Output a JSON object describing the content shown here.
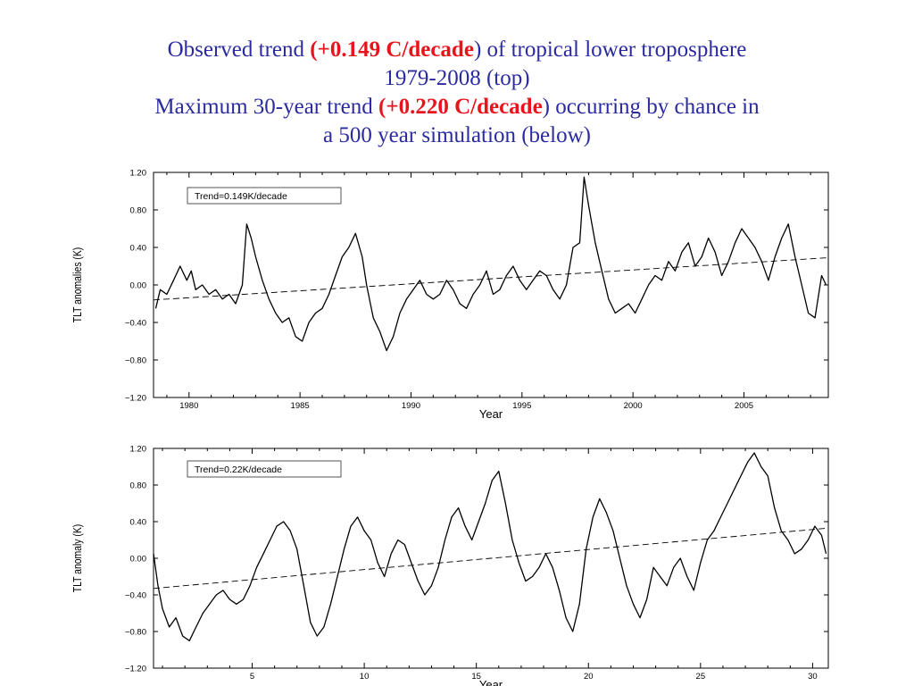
{
  "title": {
    "line1_pre": "Observed trend ",
    "line1_hl": "(+0.149 C/decade",
    "line1_post": ") of tropical lower troposphere",
    "line2": "1979-2008 (top)",
    "line3_pre": "Maximum 30-year trend ",
    "line3_hl": "(+0.220 C/decade",
    "line3_post": ") occurring by chance in",
    "line4": "a 500 year simulation (below)"
  },
  "colors": {
    "title": "#2b2ba0",
    "highlight": "#e8141c",
    "series": "#000000"
  },
  "chart_data": [
    {
      "type": "line",
      "xlabel": "Year",
      "ylabel": "TLT anomalies (K)",
      "legend": "Trend=0.149K/decade",
      "legend_position": "top-left",
      "xlim": [
        1978.4,
        2008.8
      ],
      "ylim": [
        -1.2,
        1.2
      ],
      "xticks": [
        1980,
        1985,
        1990,
        1995,
        2000,
        2005
      ],
      "yticks": [
        "1.20",
        "0.80",
        "0.40",
        "0.00",
        "−0.40",
        "−0.80",
        "−1.20"
      ],
      "grid": false,
      "series": [
        {
          "style": "solid",
          "x": [
            1978.5,
            1978.7,
            1979.0,
            1979.3,
            1979.6,
            1979.9,
            1980.1,
            1980.3,
            1980.6,
            1980.9,
            1981.2,
            1981.5,
            1981.8,
            1982.1,
            1982.4,
            1982.6,
            1982.8,
            1983.0,
            1983.3,
            1983.6,
            1983.9,
            1984.2,
            1984.5,
            1984.8,
            1985.1,
            1985.4,
            1985.7,
            1986.0,
            1986.3,
            1986.6,
            1986.9,
            1987.2,
            1987.5,
            1987.8,
            1988.0,
            1988.3,
            1988.6,
            1988.9,
            1989.2,
            1989.5,
            1989.8,
            1990.1,
            1990.4,
            1990.7,
            1991.0,
            1991.3,
            1991.6,
            1991.9,
            1992.2,
            1992.5,
            1992.8,
            1993.1,
            1993.4,
            1993.7,
            1994.0,
            1994.3,
            1994.6,
            1994.9,
            1995.2,
            1995.5,
            1995.8,
            1996.1,
            1996.4,
            1996.7,
            1997.0,
            1997.3,
            1997.6,
            1997.8,
            1998.0,
            1998.3,
            1998.6,
            1998.9,
            1999.2,
            1999.5,
            1999.8,
            2000.1,
            2000.4,
            2000.7,
            2001.0,
            2001.3,
            2001.6,
            2001.9,
            2002.2,
            2002.5,
            2002.8,
            2003.1,
            2003.4,
            2003.7,
            2004.0,
            2004.3,
            2004.6,
            2004.9,
            2005.2,
            2005.5,
            2005.8,
            2006.1,
            2006.4,
            2006.7,
            2007.0,
            2007.3,
            2007.6,
            2007.9,
            2008.2,
            2008.5,
            2008.7
          ],
          "y": [
            -0.25,
            -0.05,
            -0.1,
            0.05,
            0.2,
            0.05,
            0.15,
            -0.05,
            0.0,
            -0.1,
            -0.05,
            -0.15,
            -0.1,
            -0.2,
            0.0,
            0.65,
            0.5,
            0.3,
            0.05,
            -0.15,
            -0.3,
            -0.4,
            -0.35,
            -0.55,
            -0.6,
            -0.4,
            -0.3,
            -0.25,
            -0.1,
            0.1,
            0.3,
            0.4,
            0.55,
            0.3,
            0.0,
            -0.35,
            -0.5,
            -0.7,
            -0.55,
            -0.3,
            -0.15,
            -0.05,
            0.05,
            -0.1,
            -0.15,
            -0.1,
            0.05,
            -0.05,
            -0.2,
            -0.25,
            -0.1,
            0.0,
            0.15,
            -0.1,
            -0.05,
            0.1,
            0.2,
            0.05,
            -0.05,
            0.05,
            0.15,
            0.1,
            -0.05,
            -0.15,
            0.0,
            0.4,
            0.45,
            1.15,
            0.85,
            0.45,
            0.15,
            -0.15,
            -0.3,
            -0.25,
            -0.2,
            -0.3,
            -0.15,
            0.0,
            0.1,
            0.05,
            0.25,
            0.15,
            0.35,
            0.45,
            0.2,
            0.3,
            0.5,
            0.35,
            0.1,
            0.25,
            0.45,
            0.6,
            0.5,
            0.4,
            0.25,
            0.05,
            0.3,
            0.5,
            0.65,
            0.3,
            0.0,
            -0.3,
            -0.35,
            0.1,
            0.0
          ]
        },
        {
          "style": "dashed",
          "x": [
            1978.4,
            2008.8
          ],
          "y": [
            -0.16,
            0.29
          ]
        }
      ]
    },
    {
      "type": "line",
      "xlabel": "Year",
      "ylabel": "TLT anomaly (K)",
      "legend": "Trend=0.22K/decade",
      "legend_position": "top-left",
      "xlim": [
        0.6,
        30.7
      ],
      "ylim": [
        -1.2,
        1.2
      ],
      "xticks": [
        5,
        10,
        15,
        20,
        25,
        30
      ],
      "yticks": [
        "1.20",
        "0.80",
        "0.40",
        "0.00",
        "−0.40",
        "−0.80",
        "−1.20"
      ],
      "grid": false,
      "series": [
        {
          "style": "solid",
          "x": [
            0.6,
            0.8,
            1.0,
            1.3,
            1.6,
            1.9,
            2.2,
            2.5,
            2.8,
            3.1,
            3.4,
            3.7,
            4.0,
            4.3,
            4.6,
            4.9,
            5.2,
            5.5,
            5.8,
            6.1,
            6.4,
            6.7,
            7.0,
            7.3,
            7.6,
            7.9,
            8.2,
            8.5,
            8.8,
            9.1,
            9.4,
            9.7,
            10.0,
            10.3,
            10.6,
            10.9,
            11.2,
            11.5,
            11.8,
            12.1,
            12.4,
            12.7,
            13.0,
            13.3,
            13.6,
            13.9,
            14.2,
            14.5,
            14.8,
            15.1,
            15.4,
            15.7,
            16.0,
            16.3,
            16.6,
            16.9,
            17.2,
            17.5,
            17.8,
            18.1,
            18.4,
            18.7,
            19.0,
            19.3,
            19.6,
            19.9,
            20.2,
            20.5,
            20.8,
            21.1,
            21.4,
            21.7,
            22.0,
            22.3,
            22.6,
            22.9,
            23.2,
            23.5,
            23.8,
            24.1,
            24.4,
            24.7,
            25.0,
            25.3,
            25.6,
            25.9,
            26.2,
            26.5,
            26.8,
            27.1,
            27.4,
            27.7,
            28.0,
            28.3,
            28.6,
            28.9,
            29.2,
            29.5,
            29.8,
            30.1,
            30.4,
            30.6
          ],
          "y": [
            0.05,
            -0.3,
            -0.55,
            -0.75,
            -0.65,
            -0.85,
            -0.9,
            -0.75,
            -0.6,
            -0.5,
            -0.4,
            -0.35,
            -0.45,
            -0.5,
            -0.45,
            -0.3,
            -0.1,
            0.05,
            0.2,
            0.35,
            0.4,
            0.3,
            0.1,
            -0.3,
            -0.7,
            -0.85,
            -0.75,
            -0.5,
            -0.2,
            0.1,
            0.35,
            0.45,
            0.3,
            0.2,
            -0.05,
            -0.2,
            0.05,
            0.2,
            0.15,
            -0.05,
            -0.25,
            -0.4,
            -0.3,
            -0.1,
            0.2,
            0.45,
            0.55,
            0.35,
            0.2,
            0.4,
            0.6,
            0.85,
            0.95,
            0.6,
            0.2,
            -0.05,
            -0.25,
            -0.2,
            -0.1,
            0.05,
            -0.1,
            -0.35,
            -0.65,
            -0.8,
            -0.5,
            0.1,
            0.45,
            0.65,
            0.5,
            0.3,
            0.0,
            -0.3,
            -0.5,
            -0.65,
            -0.45,
            -0.1,
            -0.2,
            -0.3,
            -0.1,
            0.0,
            -0.2,
            -0.35,
            -0.05,
            0.2,
            0.3,
            0.45,
            0.6,
            0.75,
            0.9,
            1.05,
            1.15,
            1.0,
            0.9,
            0.55,
            0.3,
            0.2,
            0.05,
            0.1,
            0.2,
            0.35,
            0.25,
            0.05
          ]
        },
        {
          "style": "dashed",
          "x": [
            0.6,
            30.7
          ],
          "y": [
            -0.33,
            0.33
          ]
        }
      ]
    }
  ]
}
